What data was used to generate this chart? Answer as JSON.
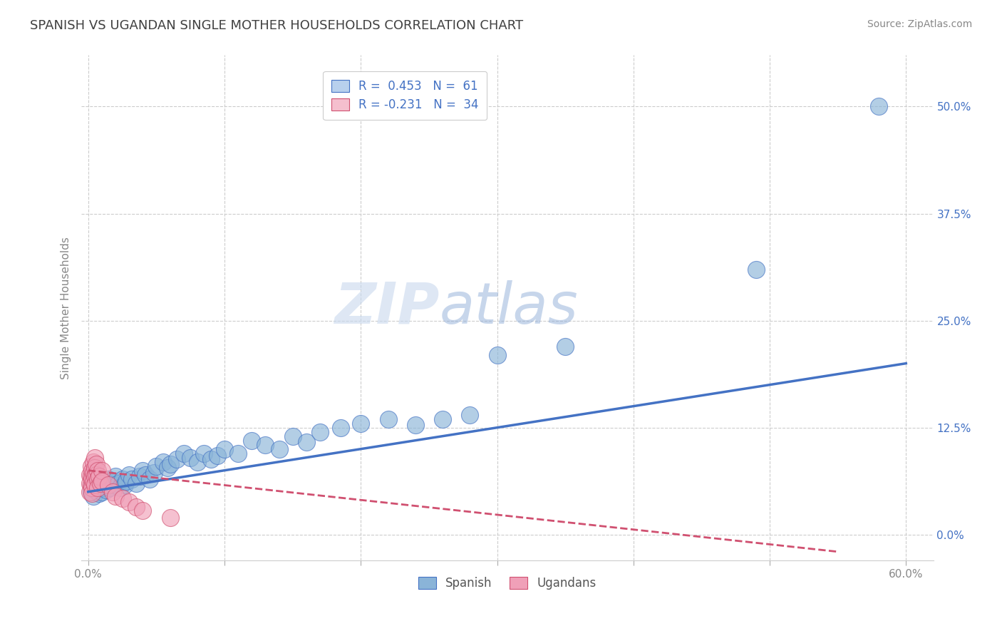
{
  "title": "SPANISH VS UGANDAN SINGLE MOTHER HOUSEHOLDS CORRELATION CHART",
  "source_text": "Source: ZipAtlas.com",
  "ylabel": "Single Mother Households",
  "xlim": [
    -0.005,
    0.62
  ],
  "ylim": [
    -0.03,
    0.56
  ],
  "xticks": [
    0.0,
    0.1,
    0.2,
    0.3,
    0.4,
    0.5,
    0.6
  ],
  "xtick_labels": [
    "0.0%",
    "",
    "",
    "",
    "",
    "",
    "60.0%"
  ],
  "ytick_vals": [
    0.0,
    0.125,
    0.25,
    0.375,
    0.5
  ],
  "ytick_labels": [
    "0.0%",
    "12.5%",
    "25.0%",
    "37.5%",
    "50.0%"
  ],
  "watermark_zip": "ZIP",
  "watermark_atlas": "atlas",
  "legend_blue_label": "R =  0.453   N =  61",
  "legend_pink_label": "R = -0.231   N =  34",
  "legend_blue_color": "#b8d0ed",
  "legend_pink_color": "#f5bfce",
  "dot_blue_color": "#8ab4d8",
  "dot_pink_color": "#f0a0b8",
  "line_blue_color": "#4472c4",
  "line_pink_color": "#d05070",
  "background_color": "#ffffff",
  "grid_color": "#cccccc",
  "title_color": "#404040",
  "title_fontsize": 13,
  "source_fontsize": 10,
  "spanish_x": [
    0.002,
    0.003,
    0.004,
    0.005,
    0.005,
    0.006,
    0.007,
    0.008,
    0.009,
    0.01,
    0.01,
    0.012,
    0.013,
    0.015,
    0.015,
    0.016,
    0.018,
    0.019,
    0.02,
    0.022,
    0.023,
    0.025,
    0.027,
    0.028,
    0.03,
    0.032,
    0.035,
    0.038,
    0.04,
    0.042,
    0.045,
    0.048,
    0.05,
    0.055,
    0.058,
    0.06,
    0.065,
    0.07,
    0.075,
    0.08,
    0.085,
    0.09,
    0.095,
    0.1,
    0.11,
    0.12,
    0.13,
    0.14,
    0.15,
    0.16,
    0.17,
    0.185,
    0.2,
    0.22,
    0.24,
    0.26,
    0.28,
    0.3,
    0.35,
    0.49,
    0.58
  ],
  "spanish_y": [
    0.05,
    0.06,
    0.045,
    0.058,
    0.052,
    0.06,
    0.055,
    0.048,
    0.062,
    0.05,
    0.055,
    0.058,
    0.052,
    0.065,
    0.06,
    0.055,
    0.062,
    0.058,
    0.068,
    0.06,
    0.055,
    0.065,
    0.058,
    0.062,
    0.07,
    0.065,
    0.06,
    0.068,
    0.075,
    0.07,
    0.065,
    0.072,
    0.08,
    0.085,
    0.078,
    0.082,
    0.088,
    0.095,
    0.09,
    0.085,
    0.095,
    0.088,
    0.092,
    0.1,
    0.095,
    0.11,
    0.105,
    0.1,
    0.115,
    0.108,
    0.12,
    0.125,
    0.13,
    0.135,
    0.128,
    0.135,
    0.14,
    0.21,
    0.22,
    0.31,
    0.5
  ],
  "ugandan_x": [
    0.001,
    0.001,
    0.001,
    0.002,
    0.002,
    0.002,
    0.003,
    0.003,
    0.003,
    0.003,
    0.004,
    0.004,
    0.004,
    0.005,
    0.005,
    0.005,
    0.005,
    0.006,
    0.006,
    0.007,
    0.007,
    0.007,
    0.008,
    0.009,
    0.01,
    0.01,
    0.015,
    0.018,
    0.02,
    0.025,
    0.03,
    0.035,
    0.04,
    0.06
  ],
  "ugandan_y": [
    0.07,
    0.06,
    0.05,
    0.08,
    0.068,
    0.058,
    0.075,
    0.065,
    0.055,
    0.048,
    0.085,
    0.072,
    0.062,
    0.09,
    0.078,
    0.068,
    0.058,
    0.082,
    0.07,
    0.075,
    0.065,
    0.055,
    0.068,
    0.06,
    0.075,
    0.062,
    0.058,
    0.05,
    0.045,
    0.042,
    0.038,
    0.032,
    0.028,
    0.02
  ],
  "blue_trend_x": [
    0.0,
    0.6
  ],
  "blue_trend_y": [
    0.05,
    0.2
  ],
  "pink_trend_x": [
    0.0,
    0.55
  ],
  "pink_trend_y": [
    0.075,
    -0.02
  ]
}
